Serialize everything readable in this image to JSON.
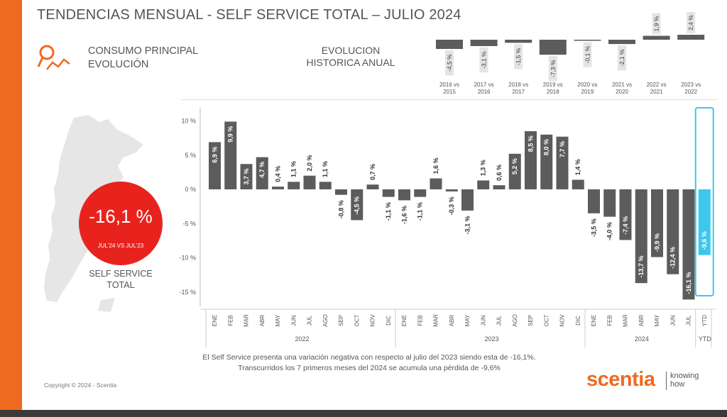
{
  "header": {
    "title": "TENDENCIAS MENSUAL - SELF SERVICE TOTAL –   JULIO 2024",
    "subtitle_line1": "CONSUMO PRINCIPAL",
    "subtitle_line2": "EVOLUCIÓN",
    "hist_title_line1": "EVOLUCION",
    "hist_title_line2": "HISTORICA ANUAL"
  },
  "badge": {
    "value": "-16,1 %",
    "caption": "JUL'24 VS JUL'23"
  },
  "map_label": {
    "line1": "SELF SERVICE",
    "line2": "TOTAL"
  },
  "note": {
    "line1": "El Self Service presenta una variación negativa con respecto al julio del 2023 siendo esta de -16,1%.",
    "line2": "Transcurridos los 7 primeros meses del 2024 se acumula una pérdida de -9,6%"
  },
  "footer": {
    "copyright": "Copyright © 2024 - Scentia",
    "brand": "scentia",
    "tagline_line1": "knowing",
    "tagline_line2": "how"
  },
  "colors": {
    "accent": "#ee6a1f",
    "bar": "#5c5c5c",
    "ytd": "#3cc8ec",
    "badge": "#e8231e"
  },
  "chart_data": [
    {
      "type": "bar",
      "categories": [
        "2016 vs 2015",
        "2017 vs 2016",
        "2018 vs 2017",
        "2019 vs 2018",
        "2020 vs 2019",
        "2021 vs 2020",
        "2022 vs 2021",
        "2023 vs 2022"
      ],
      "category_lines": [
        [
          "2016 vs",
          "2015"
        ],
        [
          "2017 vs",
          "2016"
        ],
        [
          "2018 vs",
          "2017"
        ],
        [
          "2019 vs",
          "2018"
        ],
        [
          "2020 vs",
          "2019"
        ],
        [
          "2021 vs",
          "2020"
        ],
        [
          "2022 vs",
          "2021"
        ],
        [
          "2023 vs",
          "2022"
        ]
      ],
      "values": [
        -4.5,
        -3.1,
        -1.5,
        -7.3,
        -0.1,
        -2.1,
        1.9,
        2.4
      ],
      "labels": [
        "-4,5 %",
        "-3,1 %",
        "-1,5 %",
        "-7,3 %",
        "-0,1 %",
        "-2,1 %",
        "1,9 %",
        "2,4 %"
      ]
    },
    {
      "type": "bar",
      "categories": [
        "ENE",
        "FEB",
        "MAR",
        "ABR",
        "MAY",
        "JUN",
        "JUL",
        "AGO",
        "SEP",
        "OCT",
        "NOV",
        "DIC",
        "ENE",
        "FEB",
        "MAR",
        "ABR",
        "MAY",
        "JUN",
        "JUL",
        "AGO",
        "SEP",
        "OCT",
        "NOV",
        "DIC",
        "ENE",
        "FEB",
        "MAR",
        "ABR",
        "MAY",
        "JUN",
        "JUL",
        "YTD"
      ],
      "values": [
        6.9,
        9.9,
        3.7,
        4.7,
        0.4,
        1.1,
        2.0,
        1.1,
        -0.8,
        -4.5,
        0.7,
        -1.1,
        -1.6,
        -1.1,
        1.6,
        -0.3,
        -3.1,
        1.3,
        0.6,
        5.2,
        8.5,
        8.0,
        7.7,
        1.4,
        -3.5,
        -4.0,
        -7.4,
        -13.7,
        -9.9,
        -12.4,
        -16.1,
        -9.6
      ],
      "labels": [
        "6,9 %",
        "9,9 %",
        "3,7 %",
        "4,7 %",
        "0,4 %",
        "1,1 %",
        "2,0 %",
        "1,1 %",
        "-0,8 %",
        "-4,5 %",
        "0,7 %",
        "-1,1 %",
        "-1,6 %",
        "-1,1 %",
        "1,6 %",
        "-0,3 %",
        "-3,1 %",
        "1,3 %",
        "0,6 %",
        "5,2 %",
        "8,5 %",
        "8,0 %",
        "7,7 %",
        "1,4 %",
        "-3,5 %",
        "-4,0 %",
        "-7,4 %",
        "-13,7 %",
        "-9,9 %",
        "-12,4 %",
        "-16,1 %",
        "-9,6 %"
      ],
      "groups": [
        {
          "label": "2022",
          "start": 0,
          "end": 11
        },
        {
          "label": "2023",
          "start": 12,
          "end": 23
        },
        {
          "label": "2024",
          "start": 24,
          "end": 30
        },
        {
          "label": "YTD",
          "start": 31,
          "end": 31
        }
      ],
      "highlight_index": 31,
      "yticks": [
        10,
        5,
        0,
        -5,
        -10,
        -15
      ],
      "ytick_labels": [
        "10 %",
        "5 %",
        "0 %",
        "-5 %",
        "-10 %",
        "-15 %"
      ],
      "ylim": [
        -16.5,
        11.5
      ],
      "grid": false
    }
  ]
}
